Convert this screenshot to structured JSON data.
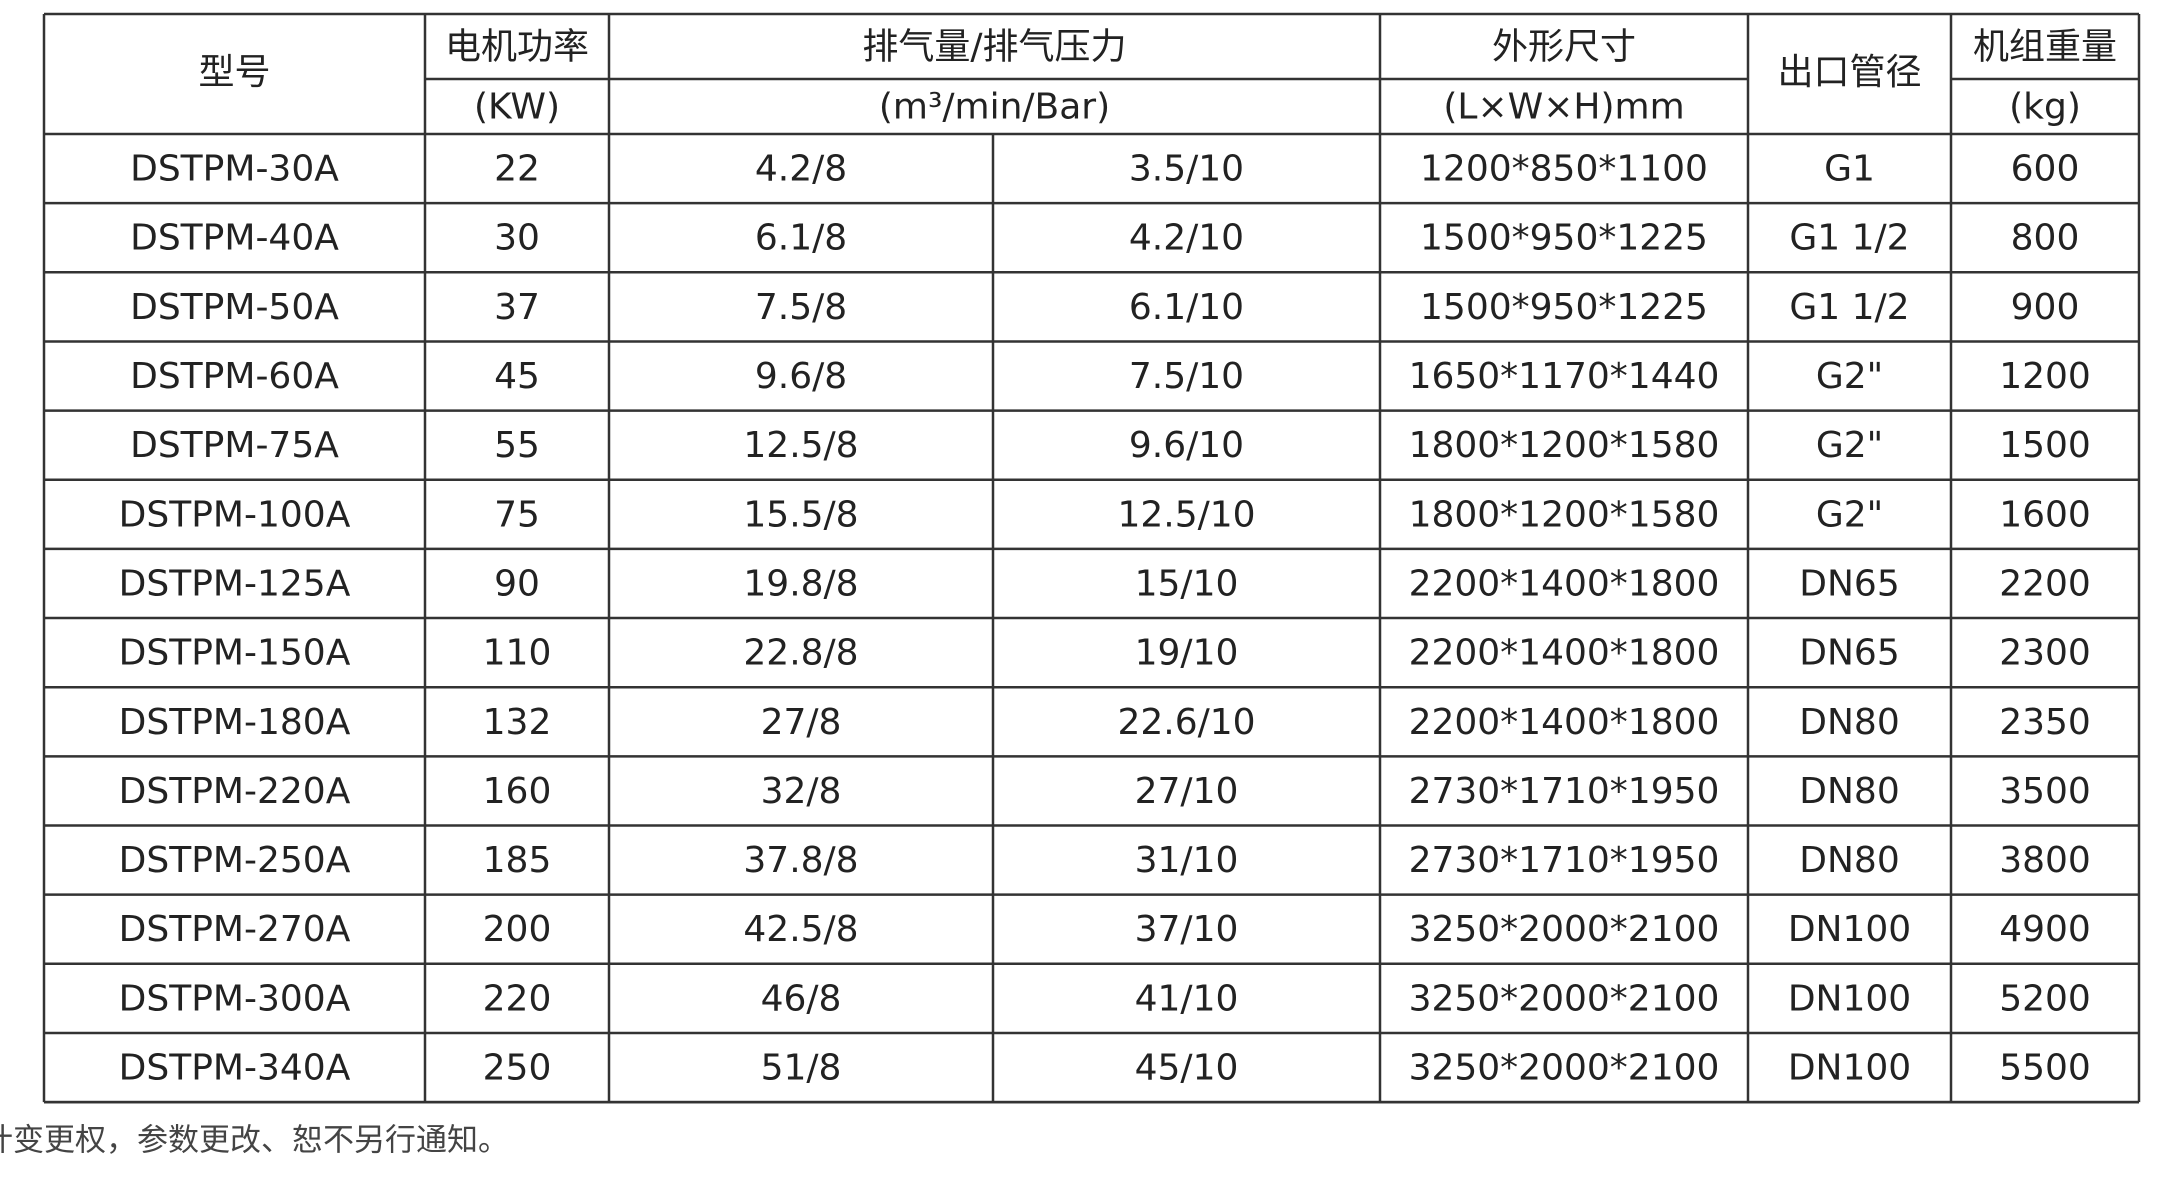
{
  "header": {
    "model": "型号",
    "power": "电机功率",
    "power_unit": "(KW)",
    "flow": "排气量/排气压力",
    "flow_unit": "(m³/min/Bar)",
    "size": "外形尺寸",
    "size_unit": "(L×W×H)mm",
    "outlet": "出口管径",
    "weight": "机组重量",
    "weight_unit": "(kg)"
  },
  "table": {
    "rows": [
      [
        "DSTPM-30A",
        "22",
        "4.2/8",
        "3.5/10",
        "1200*850*1100",
        "G1",
        "600"
      ],
      [
        "DSTPM-40A",
        "30",
        "6.1/8",
        "4.2/10",
        "1500*950*1225",
        "G1 1/2",
        "800"
      ],
      [
        "DSTPM-50A",
        "37",
        "7.5/8",
        "6.1/10",
        "1500*950*1225",
        "G1 1/2",
        "900"
      ],
      [
        "DSTPM-60A",
        "45",
        "9.6/8",
        "7.5/10",
        "1650*1170*1440",
        "G2\"",
        "1200"
      ],
      [
        "DSTPM-75A",
        "55",
        "12.5/8",
        "9.6/10",
        "1800*1200*1580",
        "G2\"",
        "1500"
      ],
      [
        "DSTPM-100A",
        "75",
        "15.5/8",
        "12.5/10",
        "1800*1200*1580",
        "G2\"",
        "1600"
      ],
      [
        "DSTPM-125A",
        "90",
        "19.8/8",
        "15/10",
        "2200*1400*1800",
        "DN65",
        "2200"
      ],
      [
        "DSTPM-150A",
        "110",
        "22.8/8",
        "19/10",
        "2200*1400*1800",
        "DN65",
        "2300"
      ],
      [
        "DSTPM-180A",
        "132",
        "27/8",
        "22.6/10",
        "2200*1400*1800",
        "DN80",
        "2350"
      ],
      [
        "DSTPM-220A",
        "160",
        "32/8",
        "27/10",
        "2730*1710*1950",
        "DN80",
        "3500"
      ],
      [
        "DSTPM-250A",
        "185",
        "37.8/8",
        "31/10",
        "2730*1710*1950",
        "DN80",
        "3800"
      ],
      [
        "DSTPM-270A",
        "200",
        "42.5/8",
        "37/10",
        "3250*2000*2100",
        "DN100",
        "4900"
      ],
      [
        "DSTPM-300A",
        "220",
        "46/8",
        "41/10",
        "3250*2000*2100",
        "DN100",
        "5200"
      ],
      [
        "DSTPM-340A",
        "250",
        "51/8",
        "45/10",
        "3250*2000*2100",
        "DN100",
        "5500"
      ]
    ]
  },
  "footnote": "本公司对产品不断改进保有设计变更权，参数更改、恕不另行通知。"
}
